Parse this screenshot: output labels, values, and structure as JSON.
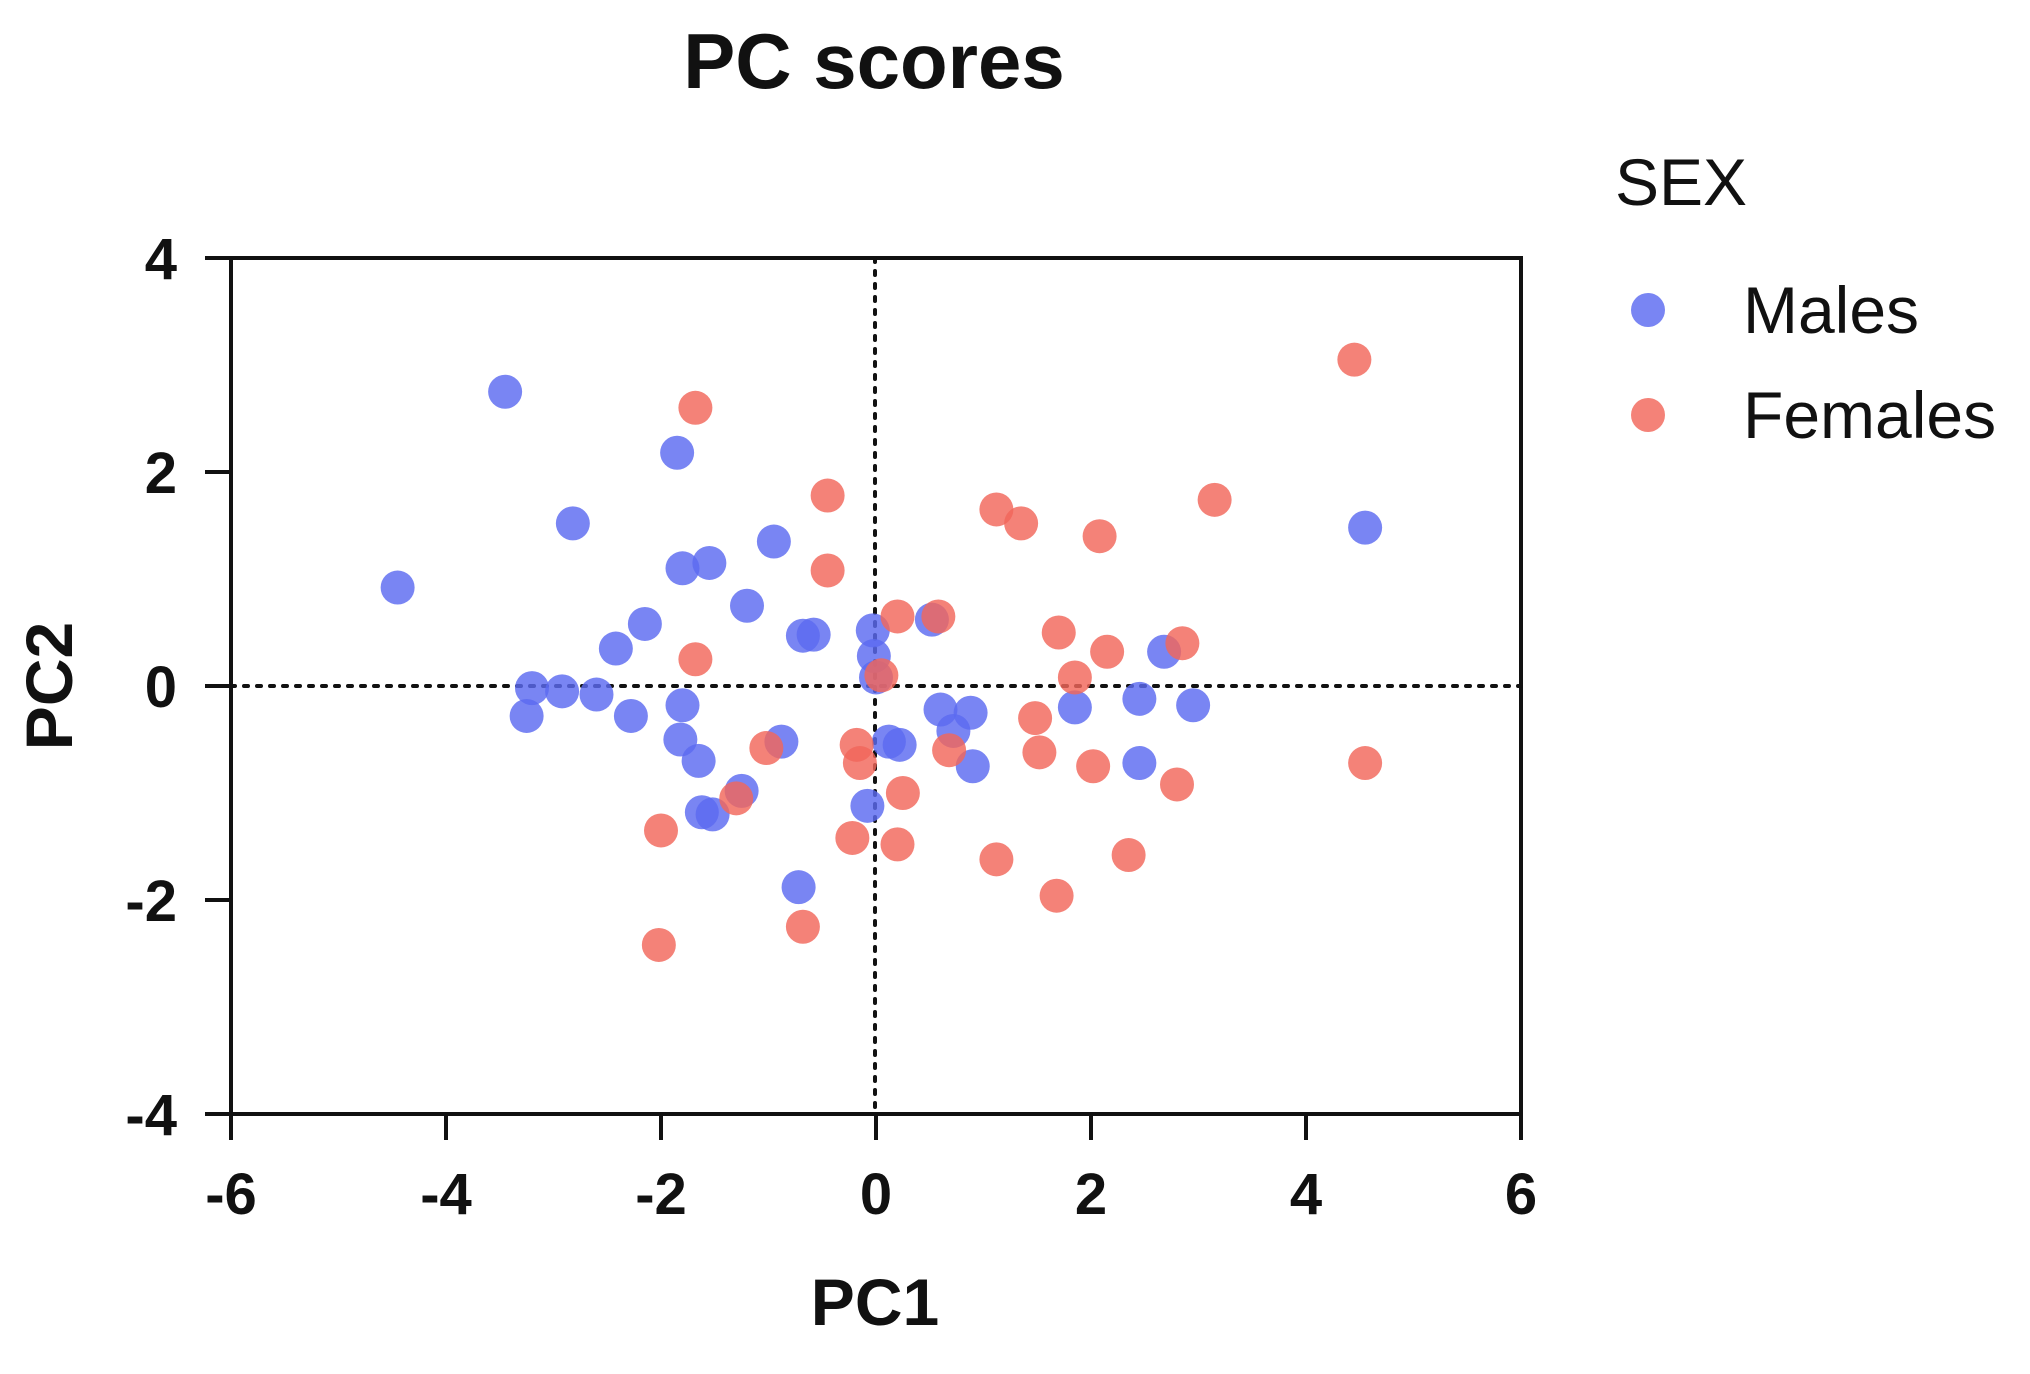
{
  "chart_data": {
    "type": "scatter",
    "title": "PC scores",
    "xlabel": "PC1",
    "ylabel": "PC2",
    "xlim": [
      -6,
      6
    ],
    "ylim": [
      -4,
      4
    ],
    "xticks": [
      -6,
      -4,
      -2,
      0,
      2,
      4,
      6
    ],
    "yticks": [
      -4,
      -2,
      0,
      2,
      4
    ],
    "x_tick_labels": [
      "-6",
      "-4",
      "-2",
      "0",
      "2",
      "4",
      "6"
    ],
    "y_tick_labels": [
      "-4",
      "-2",
      "0",
      "2",
      "4"
    ],
    "reference_lines": {
      "x": 0,
      "y": 0,
      "style": "dotted"
    },
    "legend": {
      "title": "SEX",
      "position": "right"
    },
    "series": [
      {
        "name": "Males",
        "color": "#5b6af0",
        "points": [
          {
            "x": -3.45,
            "y": 2.75
          },
          {
            "x": -1.85,
            "y": 2.18
          },
          {
            "x": -2.82,
            "y": 1.52
          },
          {
            "x": -4.45,
            "y": 0.92
          },
          {
            "x": -0.95,
            "y": 1.35
          },
          {
            "x": -1.8,
            "y": 1.1
          },
          {
            "x": -1.55,
            "y": 1.15
          },
          {
            "x": -1.2,
            "y": 0.75
          },
          {
            "x": -2.15,
            "y": 0.58
          },
          {
            "x": -2.42,
            "y": 0.35
          },
          {
            "x": -0.68,
            "y": 0.47
          },
          {
            "x": -0.58,
            "y": 0.48
          },
          {
            "x": -0.03,
            "y": 0.52
          },
          {
            "x": -0.02,
            "y": 0.28
          },
          {
            "x": 0.0,
            "y": 0.08
          },
          {
            "x": 0.52,
            "y": 0.62
          },
          {
            "x": 2.68,
            "y": 0.32
          },
          {
            "x": 4.55,
            "y": 1.48
          },
          {
            "x": -3.2,
            "y": -0.02
          },
          {
            "x": -2.92,
            "y": -0.05
          },
          {
            "x": -2.6,
            "y": -0.08
          },
          {
            "x": -3.25,
            "y": -0.28
          },
          {
            "x": -2.28,
            "y": -0.28
          },
          {
            "x": -1.8,
            "y": -0.18
          },
          {
            "x": -1.82,
            "y": -0.5
          },
          {
            "x": -1.65,
            "y": -0.7
          },
          {
            "x": -0.88,
            "y": -0.52
          },
          {
            "x": 0.12,
            "y": -0.52
          },
          {
            "x": 0.22,
            "y": -0.55
          },
          {
            "x": 0.6,
            "y": -0.22
          },
          {
            "x": 0.72,
            "y": -0.42
          },
          {
            "x": 0.88,
            "y": -0.25
          },
          {
            "x": 0.9,
            "y": -0.75
          },
          {
            "x": 1.85,
            "y": -0.2
          },
          {
            "x": 2.45,
            "y": -0.12
          },
          {
            "x": 2.95,
            "y": -0.18
          },
          {
            "x": 2.45,
            "y": -0.72
          },
          {
            "x": -1.62,
            "y": -1.18
          },
          {
            "x": -1.52,
            "y": -1.2
          },
          {
            "x": -1.25,
            "y": -0.98
          },
          {
            "x": -0.08,
            "y": -1.12
          },
          {
            "x": -0.72,
            "y": -1.88
          }
        ]
      },
      {
        "name": "Females",
        "color": "#f2665a",
        "points": [
          {
            "x": -1.68,
            "y": 2.6
          },
          {
            "x": -0.45,
            "y": 1.78
          },
          {
            "x": -0.45,
            "y": 1.08
          },
          {
            "x": 1.12,
            "y": 1.65
          },
          {
            "x": 1.35,
            "y": 1.52
          },
          {
            "x": 2.08,
            "y": 1.4
          },
          {
            "x": 3.15,
            "y": 1.74
          },
          {
            "x": 4.45,
            "y": 3.05
          },
          {
            "x": -1.68,
            "y": 0.25
          },
          {
            "x": 0.2,
            "y": 0.65
          },
          {
            "x": 0.58,
            "y": 0.65
          },
          {
            "x": 1.7,
            "y": 0.5
          },
          {
            "x": 2.15,
            "y": 0.32
          },
          {
            "x": 2.85,
            "y": 0.4
          },
          {
            "x": 0.05,
            "y": 0.1
          },
          {
            "x": 1.85,
            "y": 0.08
          },
          {
            "x": -1.02,
            "y": -0.58
          },
          {
            "x": -0.18,
            "y": -0.55
          },
          {
            "x": -0.15,
            "y": -0.72
          },
          {
            "x": 0.68,
            "y": -0.6
          },
          {
            "x": 1.48,
            "y": -0.3
          },
          {
            "x": 1.52,
            "y": -0.62
          },
          {
            "x": 2.02,
            "y": -0.75
          },
          {
            "x": 2.8,
            "y": -0.92
          },
          {
            "x": 4.55,
            "y": -0.72
          },
          {
            "x": -1.3,
            "y": -1.05
          },
          {
            "x": 0.25,
            "y": -1.0
          },
          {
            "x": -2.0,
            "y": -1.35
          },
          {
            "x": -0.22,
            "y": -1.42
          },
          {
            "x": 0.2,
            "y": -1.48
          },
          {
            "x": 1.12,
            "y": -1.62
          },
          {
            "x": 2.35,
            "y": -1.58
          },
          {
            "x": 1.68,
            "y": -1.96
          },
          {
            "x": -0.68,
            "y": -2.25
          },
          {
            "x": -2.02,
            "y": -2.42
          }
        ]
      }
    ]
  }
}
